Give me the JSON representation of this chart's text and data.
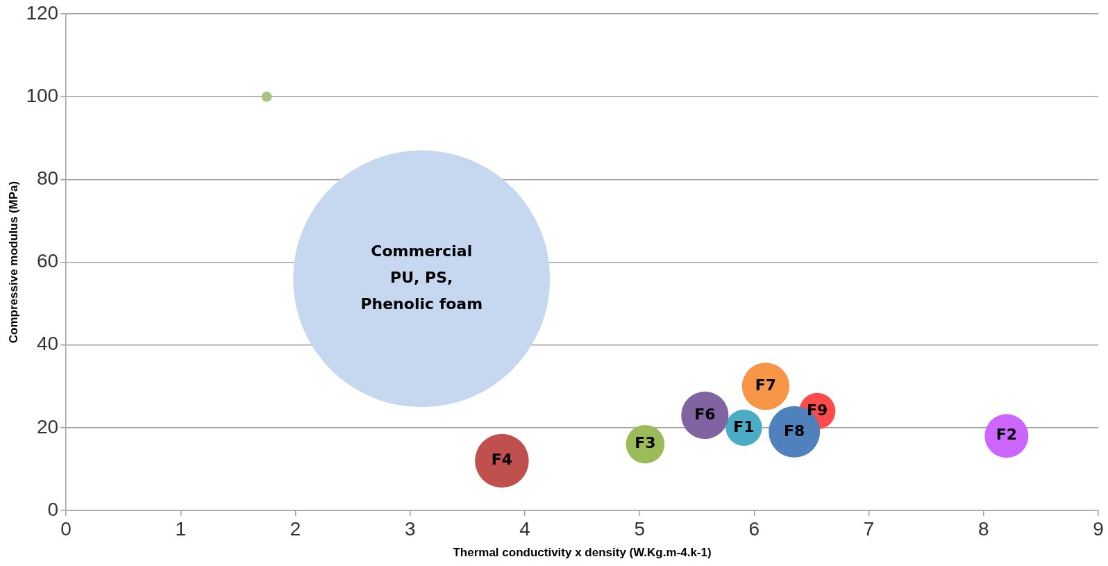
{
  "chart_data": {
    "type": "bubble",
    "xlabel": "Thermal conductivity x density (W.Kg.m-4.k-1)",
    "ylabel": "Compressive modulus (MPa)",
    "xlim": [
      0,
      9
    ],
    "xticks": [
      0,
      1,
      2,
      3,
      4,
      5,
      6,
      7,
      8,
      9
    ],
    "ylim": [
      0,
      120
    ],
    "yticks": [
      0,
      20,
      40,
      60,
      80,
      100,
      120
    ],
    "grid": "y",
    "marker": "circle",
    "series": [
      {
        "name": "Commercial PU, PS, Phenolic foam",
        "color": "#c5d8ef",
        "x": [
          3.1
        ],
        "values": [
          56
        ],
        "sizes": [
          1
        ]
      },
      {
        "color": "#a9c47f",
        "x": [
          1.75
        ],
        "values": [
          100
        ],
        "sizes": [
          0.0016
        ]
      },
      {
        "name": "F4",
        "color": "#c0504d",
        "x": [
          3.8
        ],
        "values": [
          12
        ],
        "sizes": [
          0.044
        ]
      },
      {
        "name": "F3",
        "color": "#9bbb59",
        "x": [
          5.05
        ],
        "values": [
          16
        ],
        "sizes": [
          0.0225
        ]
      },
      {
        "name": "F7",
        "color": "#f79646",
        "x": [
          6.1
        ],
        "values": [
          30
        ],
        "sizes": [
          0.034
        ]
      },
      {
        "name": "F6",
        "color": "#8064a2",
        "x": [
          5.57
        ],
        "values": [
          23
        ],
        "sizes": [
          0.034
        ]
      },
      {
        "name": "F8",
        "color": "#4f81bd",
        "x": [
          6.35
        ],
        "values": [
          19
        ],
        "sizes": [
          0.04
        ]
      },
      {
        "name": "F1",
        "color": "#4bacc6",
        "x": [
          5.91
        ],
        "values": [
          20
        ],
        "sizes": [
          0.02
        ]
      },
      {
        "name": "F9",
        "color": "#ff4b4b",
        "x": [
          6.55
        ],
        "values": [
          24
        ],
        "sizes": [
          0.02
        ]
      },
      {
        "name": "F2",
        "color": "#cc66ff",
        "x": [
          8.2
        ],
        "values": [
          18
        ],
        "sizes": [
          0.029
        ]
      }
    ]
  }
}
